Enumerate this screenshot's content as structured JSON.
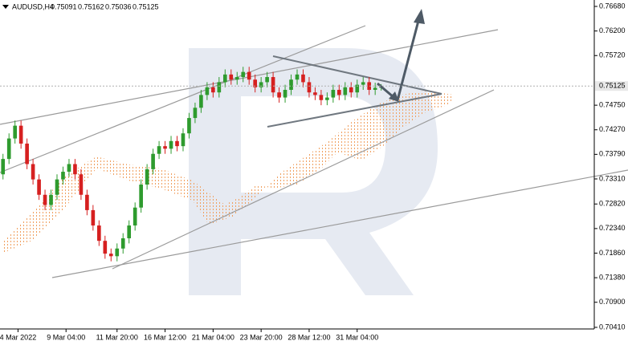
{
  "chart_data": {
    "type": "candlestick",
    "symbol": "AUDUSD,H4",
    "up_color": "#2e9b2e",
    "down_color": "#d62020",
    "x": [
      0,
      1,
      2,
      3,
      4,
      5,
      6,
      7,
      8,
      9,
      10,
      11,
      12,
      13,
      14,
      15,
      16,
      17,
      18,
      19,
      20,
      21,
      22,
      23,
      24,
      25,
      26,
      27,
      28,
      29,
      30,
      31,
      32,
      33,
      34,
      35,
      36,
      37,
      38,
      39,
      40,
      41,
      42,
      43,
      44,
      45,
      46,
      47,
      48,
      49,
      50,
      51,
      52,
      53,
      54,
      55,
      56,
      57,
      58,
      59,
      60,
      61,
      62,
      63
    ],
    "open": [
      0.734,
      0.737,
      0.741,
      0.7435,
      0.74,
      0.736,
      0.733,
      0.73,
      0.728,
      0.73,
      0.733,
      0.7345,
      0.736,
      0.734,
      0.73,
      0.727,
      0.724,
      0.721,
      0.7185,
      0.718,
      0.7195,
      0.7215,
      0.724,
      0.7275,
      0.732,
      0.735,
      0.738,
      0.7395,
      0.739,
      0.7405,
      0.7395,
      0.742,
      0.745,
      0.747,
      0.7495,
      0.751,
      0.75,
      0.752,
      0.7535,
      0.7525,
      0.753,
      0.754,
      0.7525,
      0.751,
      0.752,
      0.753,
      0.75,
      0.749,
      0.7505,
      0.7525,
      0.7535,
      0.752,
      0.75,
      0.7495,
      0.7485,
      0.749,
      0.7505,
      0.7495,
      0.751,
      0.75,
      0.7515,
      0.752,
      0.7505,
      0.75091
    ],
    "high": [
      0.738,
      0.742,
      0.7445,
      0.7445,
      0.741,
      0.737,
      0.734,
      0.731,
      0.731,
      0.734,
      0.7355,
      0.737,
      0.737,
      0.735,
      0.731,
      0.728,
      0.725,
      0.722,
      0.7195,
      0.7205,
      0.7225,
      0.725,
      0.7285,
      0.733,
      0.736,
      0.739,
      0.7405,
      0.7405,
      0.7415,
      0.7415,
      0.743,
      0.746,
      0.748,
      0.7505,
      0.752,
      0.752,
      0.753,
      0.7545,
      0.7545,
      0.754,
      0.755,
      0.755,
      0.7535,
      0.753,
      0.754,
      0.754,
      0.751,
      0.7515,
      0.7535,
      0.7545,
      0.7545,
      0.753,
      0.751,
      0.7505,
      0.75,
      0.7515,
      0.7515,
      0.752,
      0.752,
      0.7525,
      0.753,
      0.753,
      0.7519,
      0.75162
    ],
    "low": [
      0.733,
      0.736,
      0.74,
      0.739,
      0.735,
      0.732,
      0.729,
      0.727,
      0.727,
      0.729,
      0.732,
      0.7335,
      0.733,
      0.729,
      0.726,
      0.723,
      0.72,
      0.7175,
      0.717,
      0.717,
      0.7185,
      0.7205,
      0.723,
      0.7265,
      0.731,
      0.734,
      0.737,
      0.738,
      0.738,
      0.7385,
      0.7385,
      0.741,
      0.744,
      0.746,
      0.7485,
      0.749,
      0.749,
      0.751,
      0.7515,
      0.7515,
      0.752,
      0.7515,
      0.75,
      0.75,
      0.751,
      0.749,
      0.748,
      0.748,
      0.7495,
      0.7515,
      0.751,
      0.749,
      0.7485,
      0.7475,
      0.7475,
      0.748,
      0.7485,
      0.7485,
      0.749,
      0.749,
      0.7505,
      0.7495,
      0.7495,
      0.75036
    ],
    "close": [
      0.737,
      0.741,
      0.7435,
      0.74,
      0.736,
      0.733,
      0.73,
      0.728,
      0.73,
      0.733,
      0.7345,
      0.736,
      0.734,
      0.73,
      0.727,
      0.724,
      0.721,
      0.7185,
      0.718,
      0.7195,
      0.7215,
      0.724,
      0.7275,
      0.732,
      0.735,
      0.738,
      0.7395,
      0.739,
      0.7405,
      0.7395,
      0.742,
      0.745,
      0.747,
      0.7495,
      0.751,
      0.75,
      0.752,
      0.7535,
      0.7525,
      0.753,
      0.754,
      0.7525,
      0.751,
      0.752,
      0.753,
      0.75,
      0.749,
      0.7505,
      0.7525,
      0.7535,
      0.752,
      0.75,
      0.7495,
      0.7485,
      0.749,
      0.7505,
      0.7495,
      0.751,
      0.75,
      0.7515,
      0.752,
      0.7505,
      0.7509,
      0.75125
    ],
    "xlim": [
      -0.5,
      98.5
    ],
    "xticks": [
      {
        "value": 2.5,
        "label": "4 Mar 2022"
      },
      {
        "value": 10.5,
        "label": "9 Mar 04:00"
      },
      {
        "value": 19,
        "label": "11 Mar 20:00"
      },
      {
        "value": 27,
        "label": "16 Mar 12:00"
      },
      {
        "value": 35,
        "label": "21 Mar 04:00"
      },
      {
        "value": 43,
        "label": "23 Mar 20:00"
      },
      {
        "value": 51,
        "label": "28 Mar 12:00"
      },
      {
        "value": 59,
        "label": "31 Mar 04:00"
      }
    ],
    "ylim": [
      0.7041,
      0.7668
    ],
    "yticks": [
      {
        "value": 0.7668,
        "label": "0.76680"
      },
      {
        "value": 0.762,
        "label": "0.76200"
      },
      {
        "value": 0.7572,
        "label": "0.75720"
      },
      {
        "value": 0.7475,
        "label": "0.74750"
      },
      {
        "value": 0.7427,
        "label": "0.74270"
      },
      {
        "value": 0.7379,
        "label": "0.73790"
      },
      {
        "value": 0.7331,
        "label": "0.73310"
      },
      {
        "value": 0.7282,
        "label": "0.72820"
      },
      {
        "value": 0.7234,
        "label": "0.72340"
      },
      {
        "value": 0.7186,
        "label": "0.71860"
      },
      {
        "value": 0.7138,
        "label": "0.71380"
      },
      {
        "value": 0.709,
        "label": "0.70900"
      },
      {
        "value": 0.7041,
        "label": "0.70410"
      }
    ]
  }
}
